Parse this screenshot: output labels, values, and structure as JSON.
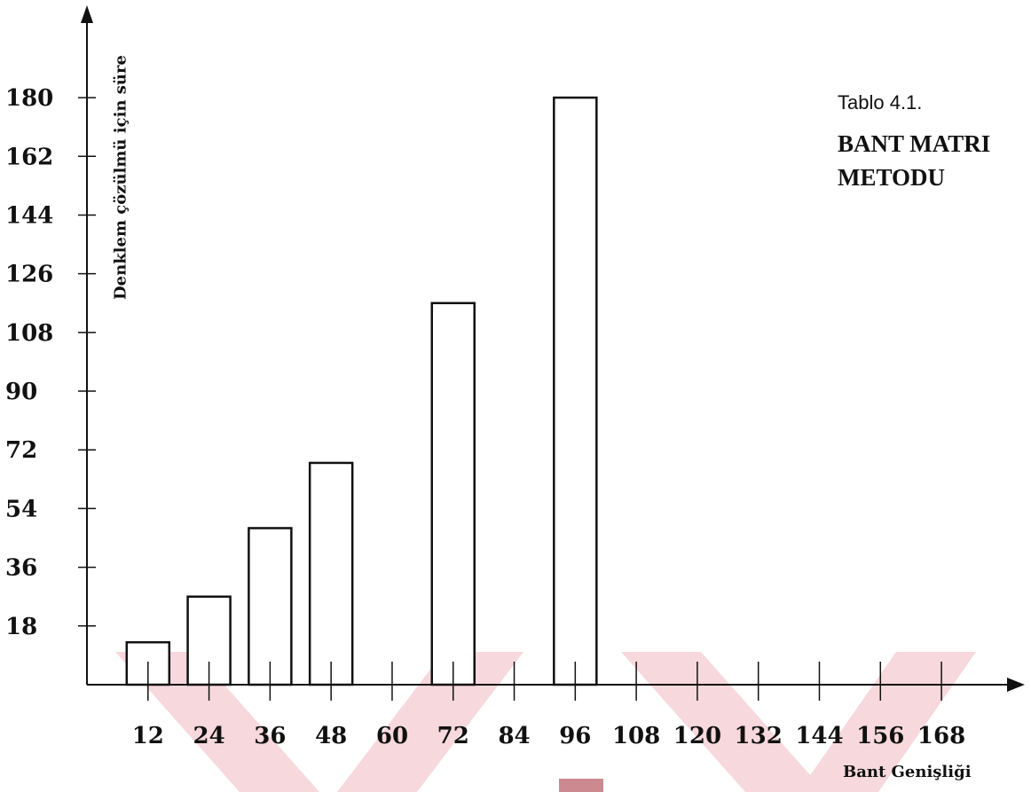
{
  "caption": "Tablo 4.1.",
  "heading_lines": [
    "BANT MATRI",
    "METODU"
  ],
  "chart_data": {
    "type": "bar",
    "title": "",
    "ylabel": "Denklem çözülmü için süre",
    "xlabel": "Bant Genişliği",
    "x_ticks": [
      12,
      24,
      36,
      48,
      60,
      72,
      84,
      96,
      108,
      120,
      132,
      144,
      156,
      168
    ],
    "y_ticks": [
      18,
      36,
      54,
      72,
      90,
      108,
      126,
      144,
      162,
      180
    ],
    "xlim": [
      0,
      172
    ],
    "ylim": [
      0,
      186
    ],
    "grid": false,
    "series": [
      {
        "categories": [
          12,
          24,
          36,
          48,
          72,
          96
        ],
        "values": [
          13,
          27,
          48,
          68,
          117,
          180
        ]
      }
    ],
    "colors": {
      "bar_fill": "#ffffff",
      "bar_stroke": "#111111",
      "axis": "#111111"
    }
  }
}
